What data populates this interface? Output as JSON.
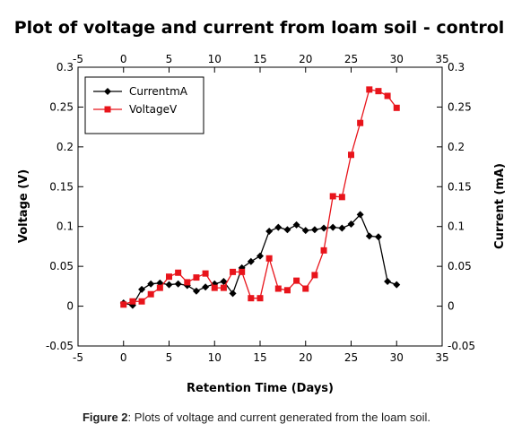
{
  "caption": {
    "label": "Figure 2",
    "text": ": Plots of voltage and current generated from the loam soil."
  },
  "chart_data": {
    "type": "line",
    "title": "Plot of voltage and current from loam soil - control",
    "xlabel": "Retention Time (Days)",
    "ylabel_left": "Voltage (V)",
    "ylabel_right": "Current (mA)",
    "xlim": [
      -5,
      35
    ],
    "ylim": [
      -0.05,
      0.3
    ],
    "x_ticks": [
      -5,
      0,
      5,
      10,
      15,
      20,
      25,
      30,
      35
    ],
    "x_tick_labels": [
      "-5",
      "0",
      "5",
      "10",
      "15",
      "20",
      "25",
      "30",
      "35"
    ],
    "y_ticks": [
      -0.05,
      0,
      0.05,
      0.1,
      0.15,
      0.2,
      0.25,
      0.3
    ],
    "y_tick_labels": [
      "-0.05",
      "0",
      "0.05",
      "0.1",
      "0.15",
      "0.2",
      "0.25",
      "0.3"
    ],
    "grid": false,
    "legend_position": "top-left",
    "series": [
      {
        "name": "CurrentmA",
        "color": "#000000",
        "marker": "diamond",
        "x": [
          0,
          1,
          2,
          3,
          4,
          5,
          6,
          7,
          8,
          9,
          10,
          11,
          12,
          13,
          14,
          15,
          16,
          17,
          18,
          19,
          20,
          21,
          22,
          23,
          24,
          25,
          26,
          27,
          28,
          29,
          30
        ],
        "y": [
          0.004,
          0.001,
          0.021,
          0.028,
          0.029,
          0.027,
          0.028,
          0.026,
          0.019,
          0.024,
          0.028,
          0.031,
          0.016,
          0.048,
          0.056,
          0.063,
          0.094,
          0.099,
          0.096,
          0.102,
          0.095,
          0.096,
          0.098,
          0.099,
          0.098,
          0.103,
          0.115,
          0.088,
          0.087,
          0.031,
          0.027
        ]
      },
      {
        "name": "VoltageV",
        "color": "#e8141b",
        "marker": "square",
        "x": [
          0,
          1,
          2,
          3,
          4,
          5,
          6,
          7,
          8,
          9,
          10,
          11,
          12,
          13,
          14,
          15,
          16,
          17,
          18,
          19,
          20,
          21,
          22,
          23,
          24,
          25,
          26,
          27,
          28,
          29,
          30
        ],
        "y": [
          0.002,
          0.006,
          0.006,
          0.015,
          0.023,
          0.037,
          0.042,
          0.03,
          0.036,
          0.041,
          0.023,
          0.023,
          0.043,
          0.043,
          0.01,
          0.01,
          0.06,
          0.022,
          0.02,
          0.032,
          0.022,
          0.039,
          0.07,
          0.138,
          0.137,
          0.19,
          0.23,
          0.272,
          0.27,
          0.264,
          0.249
        ]
      }
    ]
  }
}
